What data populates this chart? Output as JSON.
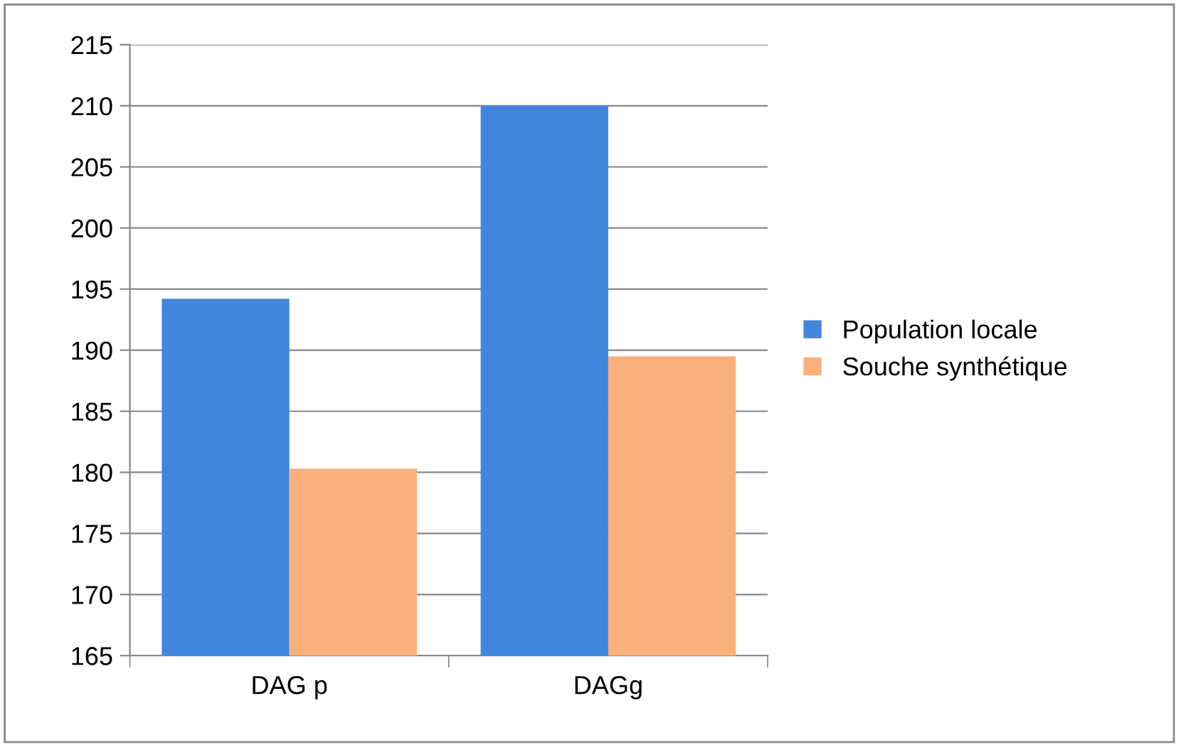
{
  "chart_data": {
    "type": "bar",
    "categories": [
      "DAG p",
      "DAGg"
    ],
    "series": [
      {
        "name": "Population locale",
        "color": "#3f86dc",
        "values": [
          194.2,
          210
        ]
      },
      {
        "name": "Souche synthétique",
        "color": "#f9b07a",
        "values": [
          180.3,
          189.5
        ]
      }
    ],
    "ylim": [
      165,
      215
    ],
    "yticks": [
      165,
      170,
      175,
      180,
      185,
      190,
      195,
      200,
      205,
      210,
      215
    ],
    "grid": "y",
    "legend": "right"
  }
}
